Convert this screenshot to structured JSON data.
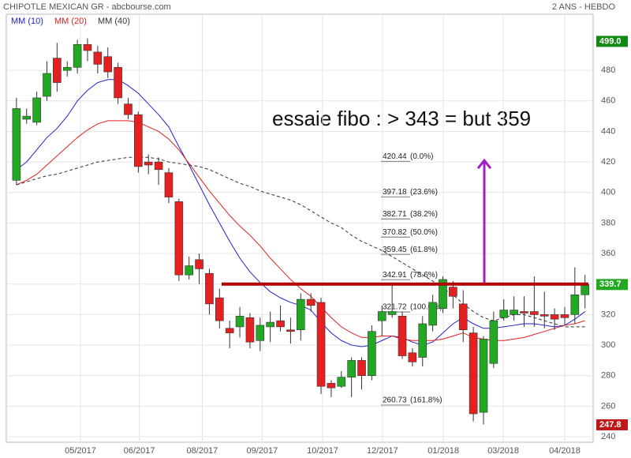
{
  "chart_data": {
    "type": "candlestick",
    "title": "CHIPOTLE MEXICAN GR - abcbourse.com",
    "subtitle": "2 ANS - HEBDO",
    "annotation": "essaie fibo : > 343 = but 359",
    "xlim": [
      -1,
      56.8
    ],
    "xticks": [
      {
        "value": 6.3,
        "label": "05/2017"
      },
      {
        "value": 12.1,
        "label": "06/2017"
      },
      {
        "value": 18.3,
        "label": "08/2017"
      },
      {
        "value": 24.2,
        "label": "09/2017"
      },
      {
        "value": 30.15,
        "label": "10/2017"
      },
      {
        "value": 36.05,
        "label": "12/2017"
      },
      {
        "value": 42.05,
        "label": "01/2018"
      },
      {
        "value": 47.95,
        "label": "03/2018"
      },
      {
        "value": 54,
        "label": "04/2018"
      }
    ],
    "ylim": [
      236.4,
      516.8
    ],
    "yticks": [
      240,
      260,
      280,
      300,
      320,
      340,
      360,
      380,
      400,
      420,
      440,
      460,
      480
    ],
    "grid": true,
    "up_color": "#22a822",
    "down_color": "#e42020",
    "candles": {
      "open": [
        408,
        448,
        446,
        463,
        488,
        480,
        482,
        497,
        492,
        489,
        482,
        458,
        451,
        420,
        420,
        413,
        394,
        346,
        356,
        347,
        331,
        311,
        312,
        318,
        303,
        312,
        316,
        310,
        310,
        330,
        328,
        275,
        273,
        279,
        290,
        280,
        316,
        320,
        319,
        295,
        292,
        313,
        324,
        338,
        327,
        308,
        256,
        288,
        318,
        320,
        322,
        322,
        320,
        320,
        320,
        320,
        333
      ],
      "high": [
        462,
        455,
        466,
        486,
        498,
        486,
        500,
        501,
        496,
        495,
        485,
        462,
        453,
        425,
        423,
        416,
        396,
        358,
        360,
        350,
        337,
        316,
        325,
        321,
        318,
        322,
        326,
        318,
        334,
        334,
        331,
        277,
        283,
        292,
        292,
        313,
        326,
        340,
        322,
        298,
        319,
        333,
        345,
        342,
        336,
        312,
        306,
        322,
        330,
        332,
        332,
        345,
        335,
        324,
        325,
        351,
        346
      ],
      "low": [
        405,
        445,
        444,
        460,
        466,
        476,
        478,
        486,
        478,
        475,
        458,
        448,
        413,
        412,
        405,
        393,
        342,
        343,
        340,
        320,
        311,
        298,
        305,
        298,
        296,
        302,
        309,
        301,
        303,
        322,
        268,
        266,
        272,
        266,
        271,
        277,
        306,
        318,
        291,
        286,
        286,
        309,
        321,
        324,
        302,
        250,
        248,
        285,
        316,
        316,
        312,
        312,
        311,
        310,
        313,
        314,
        324
      ],
      "close": [
        455,
        450,
        462,
        478,
        472,
        482,
        497,
        493,
        484,
        479,
        462,
        451,
        417,
        418,
        415,
        397,
        346,
        352,
        350,
        327,
        316,
        308,
        319,
        302,
        313,
        315,
        312,
        309,
        330,
        326,
        273,
        272,
        279,
        290,
        280,
        309,
        322,
        322,
        293,
        289,
        314,
        328,
        343,
        332,
        310,
        255,
        304,
        316,
        323,
        323,
        321,
        320,
        319,
        317,
        318,
        333,
        339.7
      ]
    },
    "series": [
      {
        "name": "MM (10)",
        "color": "#2222cc",
        "dashed": false,
        "values": [
          415,
          420,
          428,
          436,
          442,
          450,
          460,
          467,
          472,
          474,
          474,
          470,
          465,
          458,
          451,
          443,
          430,
          418,
          405,
          392,
          380,
          368,
          357,
          348,
          341,
          335,
          331,
          328,
          326,
          323,
          315,
          308,
          303,
          300,
          299,
          300,
          303,
          306,
          305,
          302,
          300,
          302,
          308,
          314,
          318,
          314,
          311,
          311,
          312,
          313,
          314,
          314,
          313,
          312,
          313,
          317,
          322
        ]
      },
      {
        "name": "MM (20)",
        "color": "#e02020",
        "dashed": false,
        "values": [
          405,
          408,
          412,
          418,
          424,
          430,
          436,
          441,
          445,
          447,
          447,
          447,
          446,
          443,
          440,
          435,
          428,
          419,
          410,
          401,
          393,
          385,
          378,
          372,
          365,
          357,
          350,
          343,
          337,
          332,
          325,
          318,
          312,
          308,
          305,
          305,
          306,
          306,
          304,
          303,
          303,
          303,
          304,
          306,
          308,
          305,
          304,
          303,
          303,
          304,
          305,
          307,
          309,
          311,
          313,
          314,
          316
        ]
      },
      {
        "name": "MM (40)",
        "color": "#333333",
        "dashed": true,
        "values": [
          405,
          407,
          409,
          411,
          412,
          414,
          416,
          418,
          420,
          421,
          422,
          423,
          423,
          423,
          422,
          420,
          419,
          418,
          417,
          415,
          412,
          409,
          406,
          404,
          401,
          399,
          397,
          395,
          392,
          388,
          384,
          380,
          377,
          372,
          368,
          365,
          362,
          358,
          354,
          350,
          346,
          342,
          337,
          333,
          327,
          322,
          318,
          316,
          318,
          320,
          320,
          318,
          316,
          314,
          312,
          312,
          312
        ]
      }
    ],
    "fibonacci": [
      {
        "value": 420.44,
        "label": "420.44",
        "pct": "(0.0%)"
      },
      {
        "value": 397.18,
        "label": "397.18",
        "pct": "(23.6%)"
      },
      {
        "value": 382.71,
        "label": "382.71",
        "pct": "(38.2%)"
      },
      {
        "value": 370.82,
        "label": "370.82",
        "pct": "(50.0%)"
      },
      {
        "value": 359.45,
        "label": "359.45",
        "pct": "(61.8%)"
      },
      {
        "value": 342.91,
        "label": "342.91",
        "pct": "(78.6%)"
      },
      {
        "value": 321.72,
        "label": "321.72",
        "pct": "(100.0%)"
      },
      {
        "value": 260.73,
        "label": "260.73",
        "pct": "(161.8%)"
      }
    ],
    "resistance": {
      "value": 340,
      "color": "#b00000"
    },
    "arrow": {
      "from": 341,
      "to": 421,
      "color": "#a020c0"
    },
    "price_markers": [
      {
        "value": 499,
        "label": "499.0",
        "color": "#138a13"
      },
      {
        "value": 339.7,
        "label": "339.7",
        "color": "#22a822"
      },
      {
        "value": 247.8,
        "label": "247.8",
        "color": "#c01818"
      }
    ]
  }
}
